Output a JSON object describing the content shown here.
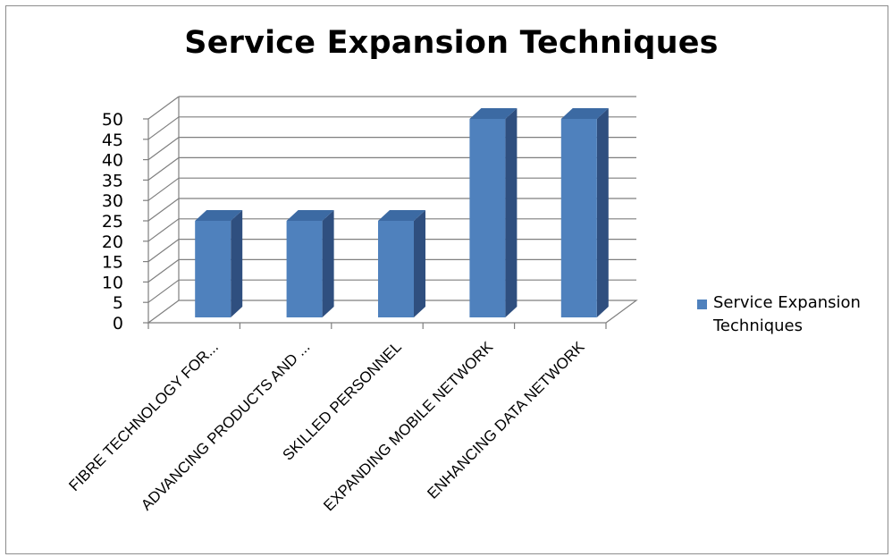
{
  "chart_data": {
    "type": "bar",
    "title": "Service Expansion Techniques",
    "categories": [
      "FIBRE TECHNOLOGY FOR...",
      "ADVANCING PRODUCTS AND ...",
      "SKILLED PERSONNEL",
      "EXPANDING MOBILE NETWORK",
      "ENHANCING DATA NETWORK"
    ],
    "series": [
      {
        "name": "Service Expansion Techniques",
        "values": [
          25,
          25,
          25,
          50,
          50
        ]
      }
    ],
    "ylim": [
      0,
      50
    ],
    "yticks": [
      "0",
      "5",
      "10",
      "15",
      "20",
      "25",
      "30",
      "35",
      "40",
      "45",
      "50"
    ],
    "grid": true,
    "legend_position": "right",
    "style": "3d-column",
    "colors": {
      "bar_front": "#4f81bd",
      "bar_side": "#2f4f7f",
      "bar_top": "#3c6aa3",
      "grid": "#7f7f7f"
    }
  }
}
